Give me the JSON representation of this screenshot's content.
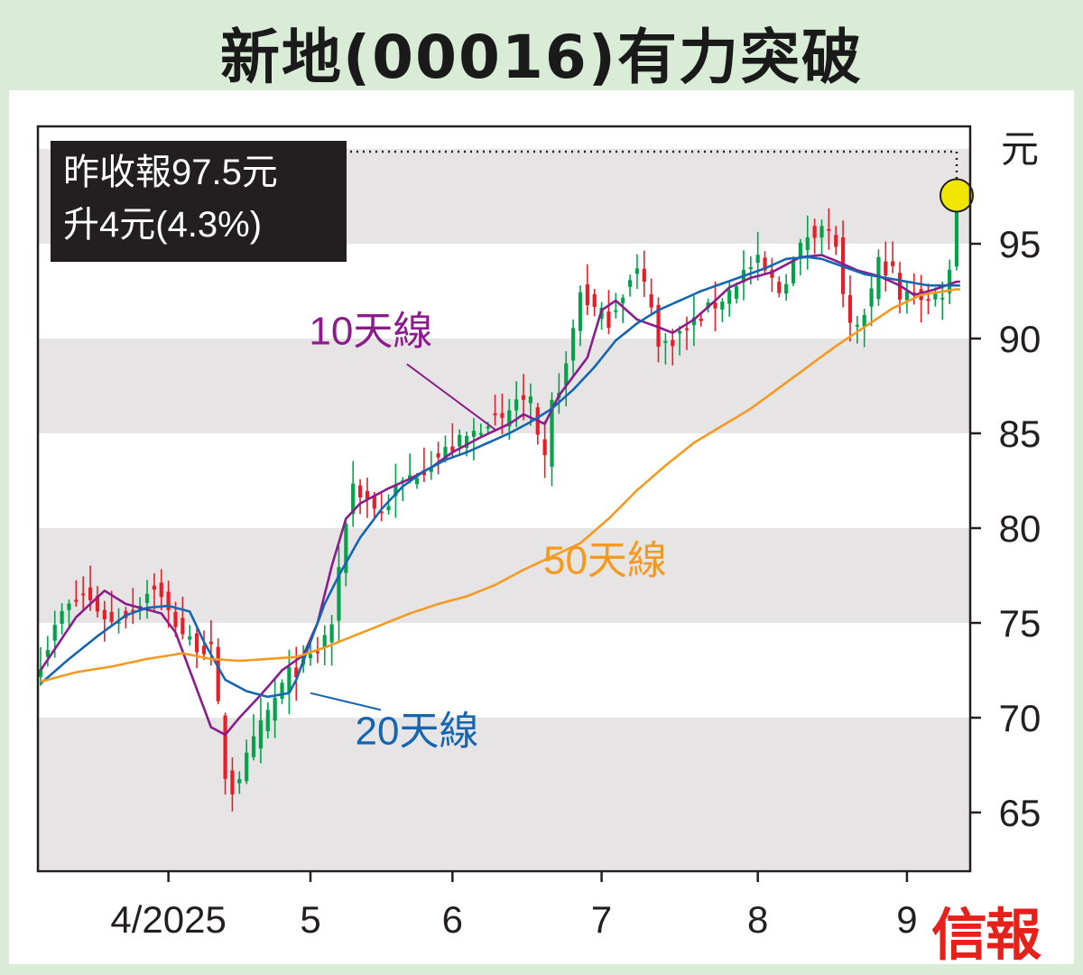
{
  "title": "新地(00016)有力突破",
  "info_box": {
    "line1": "昨收報97.5元",
    "line2": "升4元(4.3%)"
  },
  "logo_text": "信報",
  "colors": {
    "background": "#d8ecd6",
    "band": "#e6e4e5",
    "up": "#00a34a",
    "down": "#e3202a",
    "ma10": "#8b1c8b",
    "ma20": "#1466b0",
    "ma50": "#f39a1f",
    "marker": "#f2e600"
  },
  "chart_data": {
    "type": "candlestick",
    "y_unit": "元",
    "ylim": [
      62,
      100
    ],
    "y_ticks": [
      65,
      70,
      75,
      80,
      85,
      90,
      95
    ],
    "x_ticks": [
      {
        "label": "4/2025",
        "day": 18
      },
      {
        "label": "5",
        "day": 38
      },
      {
        "label": "6",
        "day": 58
      },
      {
        "label": "7",
        "day": 79
      },
      {
        "label": "8",
        "day": 101
      },
      {
        "label": "9",
        "day": 122
      }
    ],
    "last_close": 97.5,
    "close_key": [
      [
        0,
        73.0
      ],
      [
        3,
        75.5
      ],
      [
        6,
        76.5
      ],
      [
        10,
        75.0
      ],
      [
        13,
        75.8
      ],
      [
        16,
        77.0
      ],
      [
        18,
        75.5
      ],
      [
        21,
        74.0
      ],
      [
        24,
        73.5
      ],
      [
        25,
        70.5
      ],
      [
        26,
        67.0
      ],
      [
        27,
        66.2
      ],
      [
        29,
        67.8
      ],
      [
        31,
        69.5
      ],
      [
        33,
        71.0
      ],
      [
        35,
        72.3
      ],
      [
        37,
        72.8
      ],
      [
        39,
        73.5
      ],
      [
        41,
        75.0
      ],
      [
        42,
        77.5
      ],
      [
        43,
        80.5
      ],
      [
        44,
        82.3
      ],
      [
        46,
        81.5
      ],
      [
        48,
        80.8
      ],
      [
        50,
        82.0
      ],
      [
        52,
        82.7
      ],
      [
        55,
        83.5
      ],
      [
        58,
        84.3
      ],
      [
        61,
        85.0
      ],
      [
        63,
        85.8
      ],
      [
        65,
        85.5
      ],
      [
        67,
        86.8
      ],
      [
        69,
        86.5
      ],
      [
        70,
        84.5
      ],
      [
        71,
        83.5
      ],
      [
        72,
        86.5
      ],
      [
        74,
        88.5
      ],
      [
        75,
        90.5
      ],
      [
        76,
        92.5
      ],
      [
        78,
        91.5
      ],
      [
        80,
        91.0
      ],
      [
        82,
        92.5
      ],
      [
        84,
        93.5
      ],
      [
        86,
        92.0
      ],
      [
        87,
        89.5
      ],
      [
        89,
        90.0
      ],
      [
        91,
        90.5
      ],
      [
        93,
        91.2
      ],
      [
        95,
        91.8
      ],
      [
        97,
        92.5
      ],
      [
        99,
        93.5
      ],
      [
        101,
        94.0
      ],
      [
        103,
        93.0
      ],
      [
        104,
        92.5
      ],
      [
        106,
        94.0
      ],
      [
        108,
        95.5
      ],
      [
        110,
        96.0
      ],
      [
        112,
        95.0
      ],
      [
        113,
        92.0
      ],
      [
        114,
        90.5
      ],
      [
        115,
        90.3
      ],
      [
        117,
        92.5
      ],
      [
        118,
        94.0
      ],
      [
        120,
        93.5
      ],
      [
        121,
        92.0
      ],
      [
        123,
        92.5
      ],
      [
        125,
        92.0
      ],
      [
        127,
        92.5
      ],
      [
        128,
        93.5
      ],
      [
        129,
        97.5
      ]
    ],
    "series": [
      {
        "name": "10天線",
        "values": [
          [
            0,
            72.5
          ],
          [
            5,
            75.3
          ],
          [
            9,
            76.7
          ],
          [
            12,
            76.0
          ],
          [
            17,
            75.5
          ],
          [
            19,
            74.5
          ],
          [
            22,
            71.5
          ],
          [
            24,
            69.5
          ],
          [
            26,
            69.1
          ],
          [
            28,
            70.0
          ],
          [
            31,
            71.2
          ],
          [
            34,
            72.5
          ],
          [
            37,
            73.3
          ],
          [
            39,
            75.0
          ],
          [
            41,
            78.0
          ],
          [
            43,
            80.5
          ],
          [
            45,
            81.3
          ],
          [
            47,
            81.7
          ],
          [
            49,
            82.1
          ],
          [
            52,
            82.6
          ],
          [
            55,
            83.2
          ],
          [
            58,
            84.0
          ],
          [
            62,
            84.8
          ],
          [
            66,
            85.5
          ],
          [
            68,
            86.0
          ],
          [
            71,
            85.5
          ],
          [
            73,
            87.0
          ],
          [
            75,
            88.0
          ],
          [
            77,
            89.0
          ],
          [
            79,
            91.5
          ],
          [
            81,
            92.0
          ],
          [
            84,
            91.0
          ],
          [
            87,
            90.6
          ],
          [
            89,
            90.3
          ],
          [
            92,
            91.0
          ],
          [
            95,
            92.0
          ],
          [
            97,
            92.7
          ],
          [
            100,
            93.2
          ],
          [
            103,
            93.5
          ],
          [
            107,
            94.3
          ],
          [
            110,
            94.4
          ],
          [
            112,
            94.1
          ],
          [
            115,
            93.6
          ],
          [
            118,
            93.3
          ],
          [
            121,
            92.8
          ],
          [
            123,
            92.3
          ],
          [
            126,
            92.6
          ],
          [
            129,
            93.0
          ]
        ],
        "label": "10天線",
        "label_day": 46.5,
        "label_value": 89.7
      },
      {
        "name": "20天線",
        "values": [
          [
            0,
            71.8
          ],
          [
            4,
            73.1
          ],
          [
            8,
            74.3
          ],
          [
            12,
            75.4
          ],
          [
            15,
            75.8
          ],
          [
            18,
            75.9
          ],
          [
            21,
            75.6
          ],
          [
            23,
            74.0
          ],
          [
            26,
            72.0
          ],
          [
            29,
            71.4
          ],
          [
            32,
            71.1
          ],
          [
            35,
            71.3
          ],
          [
            36,
            72.0
          ],
          [
            38,
            74.0
          ],
          [
            40,
            76.0
          ],
          [
            42,
            77.5
          ],
          [
            45,
            79.5
          ],
          [
            48,
            81.0
          ],
          [
            51,
            82.2
          ],
          [
            54,
            83.0
          ],
          [
            57,
            83.6
          ],
          [
            60,
            84.0
          ],
          [
            63,
            84.5
          ],
          [
            66,
            85.0
          ],
          [
            69,
            85.6
          ],
          [
            72,
            86.3
          ],
          [
            75,
            87.3
          ],
          [
            78,
            88.5
          ],
          [
            81,
            89.9
          ],
          [
            84,
            90.8
          ],
          [
            87,
            91.5
          ],
          [
            90,
            92.0
          ],
          [
            93,
            92.5
          ],
          [
            96,
            92.9
          ],
          [
            99,
            93.3
          ],
          [
            102,
            93.7
          ],
          [
            105,
            94.2
          ],
          [
            108,
            94.3
          ],
          [
            110,
            94.2
          ],
          [
            113,
            93.8
          ],
          [
            116,
            93.4
          ],
          [
            119,
            93.2
          ],
          [
            122,
            93.0
          ],
          [
            125,
            92.8
          ],
          [
            129,
            92.8
          ]
        ],
        "label": "20天線",
        "label_day": 53,
        "label_value": 68.6
      },
      {
        "name": "50天線",
        "values": [
          [
            0,
            71.9
          ],
          [
            5,
            72.4
          ],
          [
            10,
            72.7
          ],
          [
            15,
            73.1
          ],
          [
            20,
            73.4
          ],
          [
            24,
            73.1
          ],
          [
            28,
            73.0
          ],
          [
            32,
            73.1
          ],
          [
            36,
            73.2
          ],
          [
            40,
            73.7
          ],
          [
            44,
            74.3
          ],
          [
            48,
            74.9
          ],
          [
            52,
            75.5
          ],
          [
            56,
            76.0
          ],
          [
            60,
            76.4
          ],
          [
            64,
            77.0
          ],
          [
            68,
            77.8
          ],
          [
            72,
            78.5
          ],
          [
            76,
            79.2
          ],
          [
            80,
            80.5
          ],
          [
            84,
            82.0
          ],
          [
            88,
            83.3
          ],
          [
            92,
            84.5
          ],
          [
            96,
            85.4
          ],
          [
            100,
            86.3
          ],
          [
            104,
            87.4
          ],
          [
            108,
            88.5
          ],
          [
            112,
            89.6
          ],
          [
            116,
            90.6
          ],
          [
            120,
            91.6
          ],
          [
            124,
            92.3
          ],
          [
            129,
            92.6
          ]
        ],
        "label": "50天線",
        "label_day": 79.5,
        "label_value": 77.6
      }
    ]
  }
}
